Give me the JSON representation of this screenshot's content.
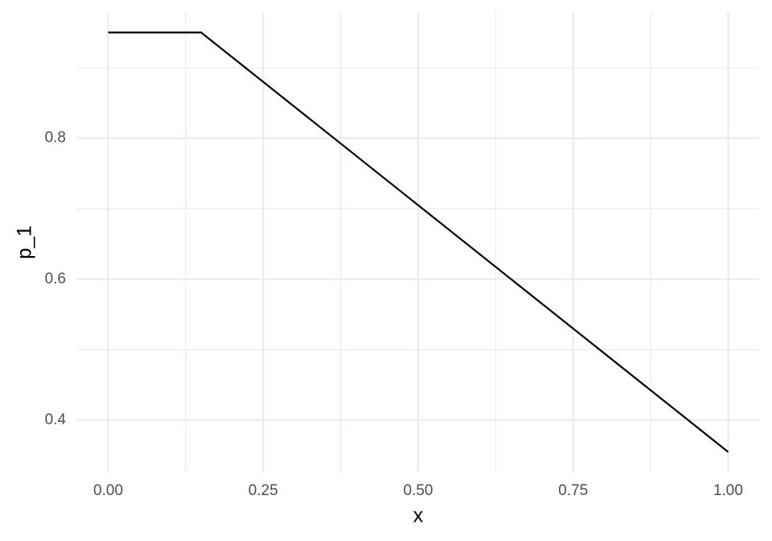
{
  "chart_data": {
    "type": "line",
    "xlabel": "x",
    "ylabel": "p_1",
    "x": [
      0,
      0.15,
      1
    ],
    "series": [
      {
        "color": "#000000",
        "values": [
          0.95,
          0.95,
          0.355
        ]
      }
    ],
    "xlim": [
      -0.05,
      1.05
    ],
    "ylim": [
      0.3257,
      0.979
    ],
    "xticks": [
      {
        "value": 0,
        "label": "0.00"
      },
      0.25,
      {
        "value": 0.5,
        "label": "0.50"
      },
      0.75,
      {
        "value": 1,
        "label": "1.00"
      }
    ],
    "yticks": [
      0.4,
      0.6,
      0.8
    ],
    "x_minor_breaks": [
      0.125,
      0.375,
      0.625,
      0.875
    ],
    "y_minor_breaks": [
      0.5,
      0.7,
      0.9
    ],
    "grid": true
  }
}
